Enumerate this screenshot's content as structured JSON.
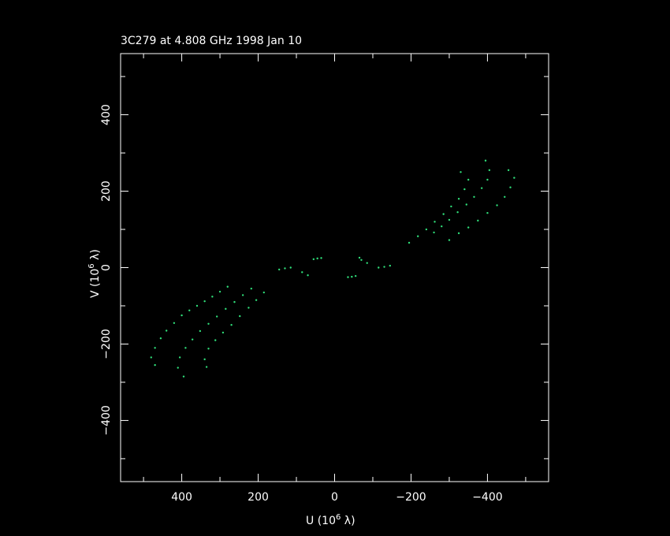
{
  "chart_data": {
    "type": "scatter",
    "title": "3C279 at 4.808 GHz 1998 Jan 10",
    "xlabel": "U (10",
    "xlabel_exp": "6",
    "xlabel_tail": " λ)",
    "ylabel": "V (10",
    "ylabel_exp": "6",
    "ylabel_tail": " λ)",
    "xlim": [
      560,
      -560
    ],
    "ylim": [
      -560,
      560
    ],
    "x_ticks": [
      400,
      200,
      0,
      -200,
      -400
    ],
    "x_tick_labels": [
      "400",
      "200",
      "0",
      "−200",
      "−400"
    ],
    "y_ticks": [
      -400,
      -200,
      0,
      200,
      400
    ],
    "y_tick_labels": [
      "−400",
      "−200",
      "0",
      "200",
      "400"
    ],
    "point_color": "#2fe07a",
    "series": [
      {
        "points": [
          [
            470,
            -255
          ],
          [
            480,
            -235
          ],
          [
            470,
            -210
          ],
          [
            455,
            -185
          ],
          [
            440,
            -165
          ],
          [
            420,
            -145
          ],
          [
            400,
            -125
          ],
          [
            380,
            -112
          ],
          [
            360,
            -100
          ],
          [
            340,
            -88
          ],
          [
            320,
            -76
          ],
          [
            300,
            -63
          ],
          [
            280,
            -50
          ]
        ]
      },
      {
        "points": [
          [
            395,
            -285
          ],
          [
            410,
            -262
          ],
          [
            405,
            -235
          ],
          [
            390,
            -210
          ],
          [
            372,
            -188
          ],
          [
            352,
            -166
          ],
          [
            330,
            -147
          ],
          [
            308,
            -128
          ],
          [
            285,
            -108
          ],
          [
            262,
            -90
          ],
          [
            240,
            -72
          ],
          [
            218,
            -55
          ]
        ]
      },
      {
        "points": [
          [
            335,
            -260
          ],
          [
            340,
            -240
          ],
          [
            330,
            -212
          ],
          [
            312,
            -190
          ],
          [
            292,
            -170
          ],
          [
            270,
            -150
          ],
          [
            248,
            -127
          ],
          [
            225,
            -105
          ],
          [
            205,
            -85
          ],
          [
            185,
            -65
          ]
        ]
      },
      {
        "points": [
          [
            -330,
            250
          ],
          [
            -350,
            230
          ],
          [
            -340,
            205
          ],
          [
            -325,
            180
          ],
          [
            -305,
            160
          ],
          [
            -285,
            140
          ],
          [
            -262,
            120
          ],
          [
            -240,
            100
          ],
          [
            -218,
            82
          ],
          [
            -195,
            65
          ]
        ]
      },
      {
        "points": [
          [
            -395,
            280
          ],
          [
            -405,
            255
          ],
          [
            -400,
            230
          ],
          [
            -385,
            208
          ],
          [
            -365,
            185
          ],
          [
            -345,
            165
          ],
          [
            -322,
            145
          ],
          [
            -300,
            125
          ],
          [
            -280,
            108
          ],
          [
            -260,
            92
          ]
        ]
      },
      {
        "points": [
          [
            -455,
            255
          ],
          [
            -470,
            235
          ],
          [
            -460,
            210
          ],
          [
            -445,
            185
          ],
          [
            -425,
            163
          ],
          [
            -400,
            143
          ],
          [
            -375,
            123
          ],
          [
            -350,
            105
          ],
          [
            -325,
            90
          ],
          [
            -300,
            72
          ]
        ]
      },
      {
        "points": [
          [
            145,
            -5
          ],
          [
            130,
            -2
          ],
          [
            115,
            0
          ],
          [
            85,
            -12
          ],
          [
            70,
            -20
          ],
          [
            55,
            22
          ],
          [
            45,
            24
          ],
          [
            35,
            25
          ]
        ]
      },
      {
        "points": [
          [
            -145,
            5
          ],
          [
            -130,
            2
          ],
          [
            -115,
            0
          ],
          [
            -85,
            12
          ],
          [
            -70,
            20
          ],
          [
            -55,
            -22
          ],
          [
            -45,
            -24
          ],
          [
            -35,
            -25
          ],
          [
            -65,
            26
          ]
        ]
      }
    ]
  }
}
